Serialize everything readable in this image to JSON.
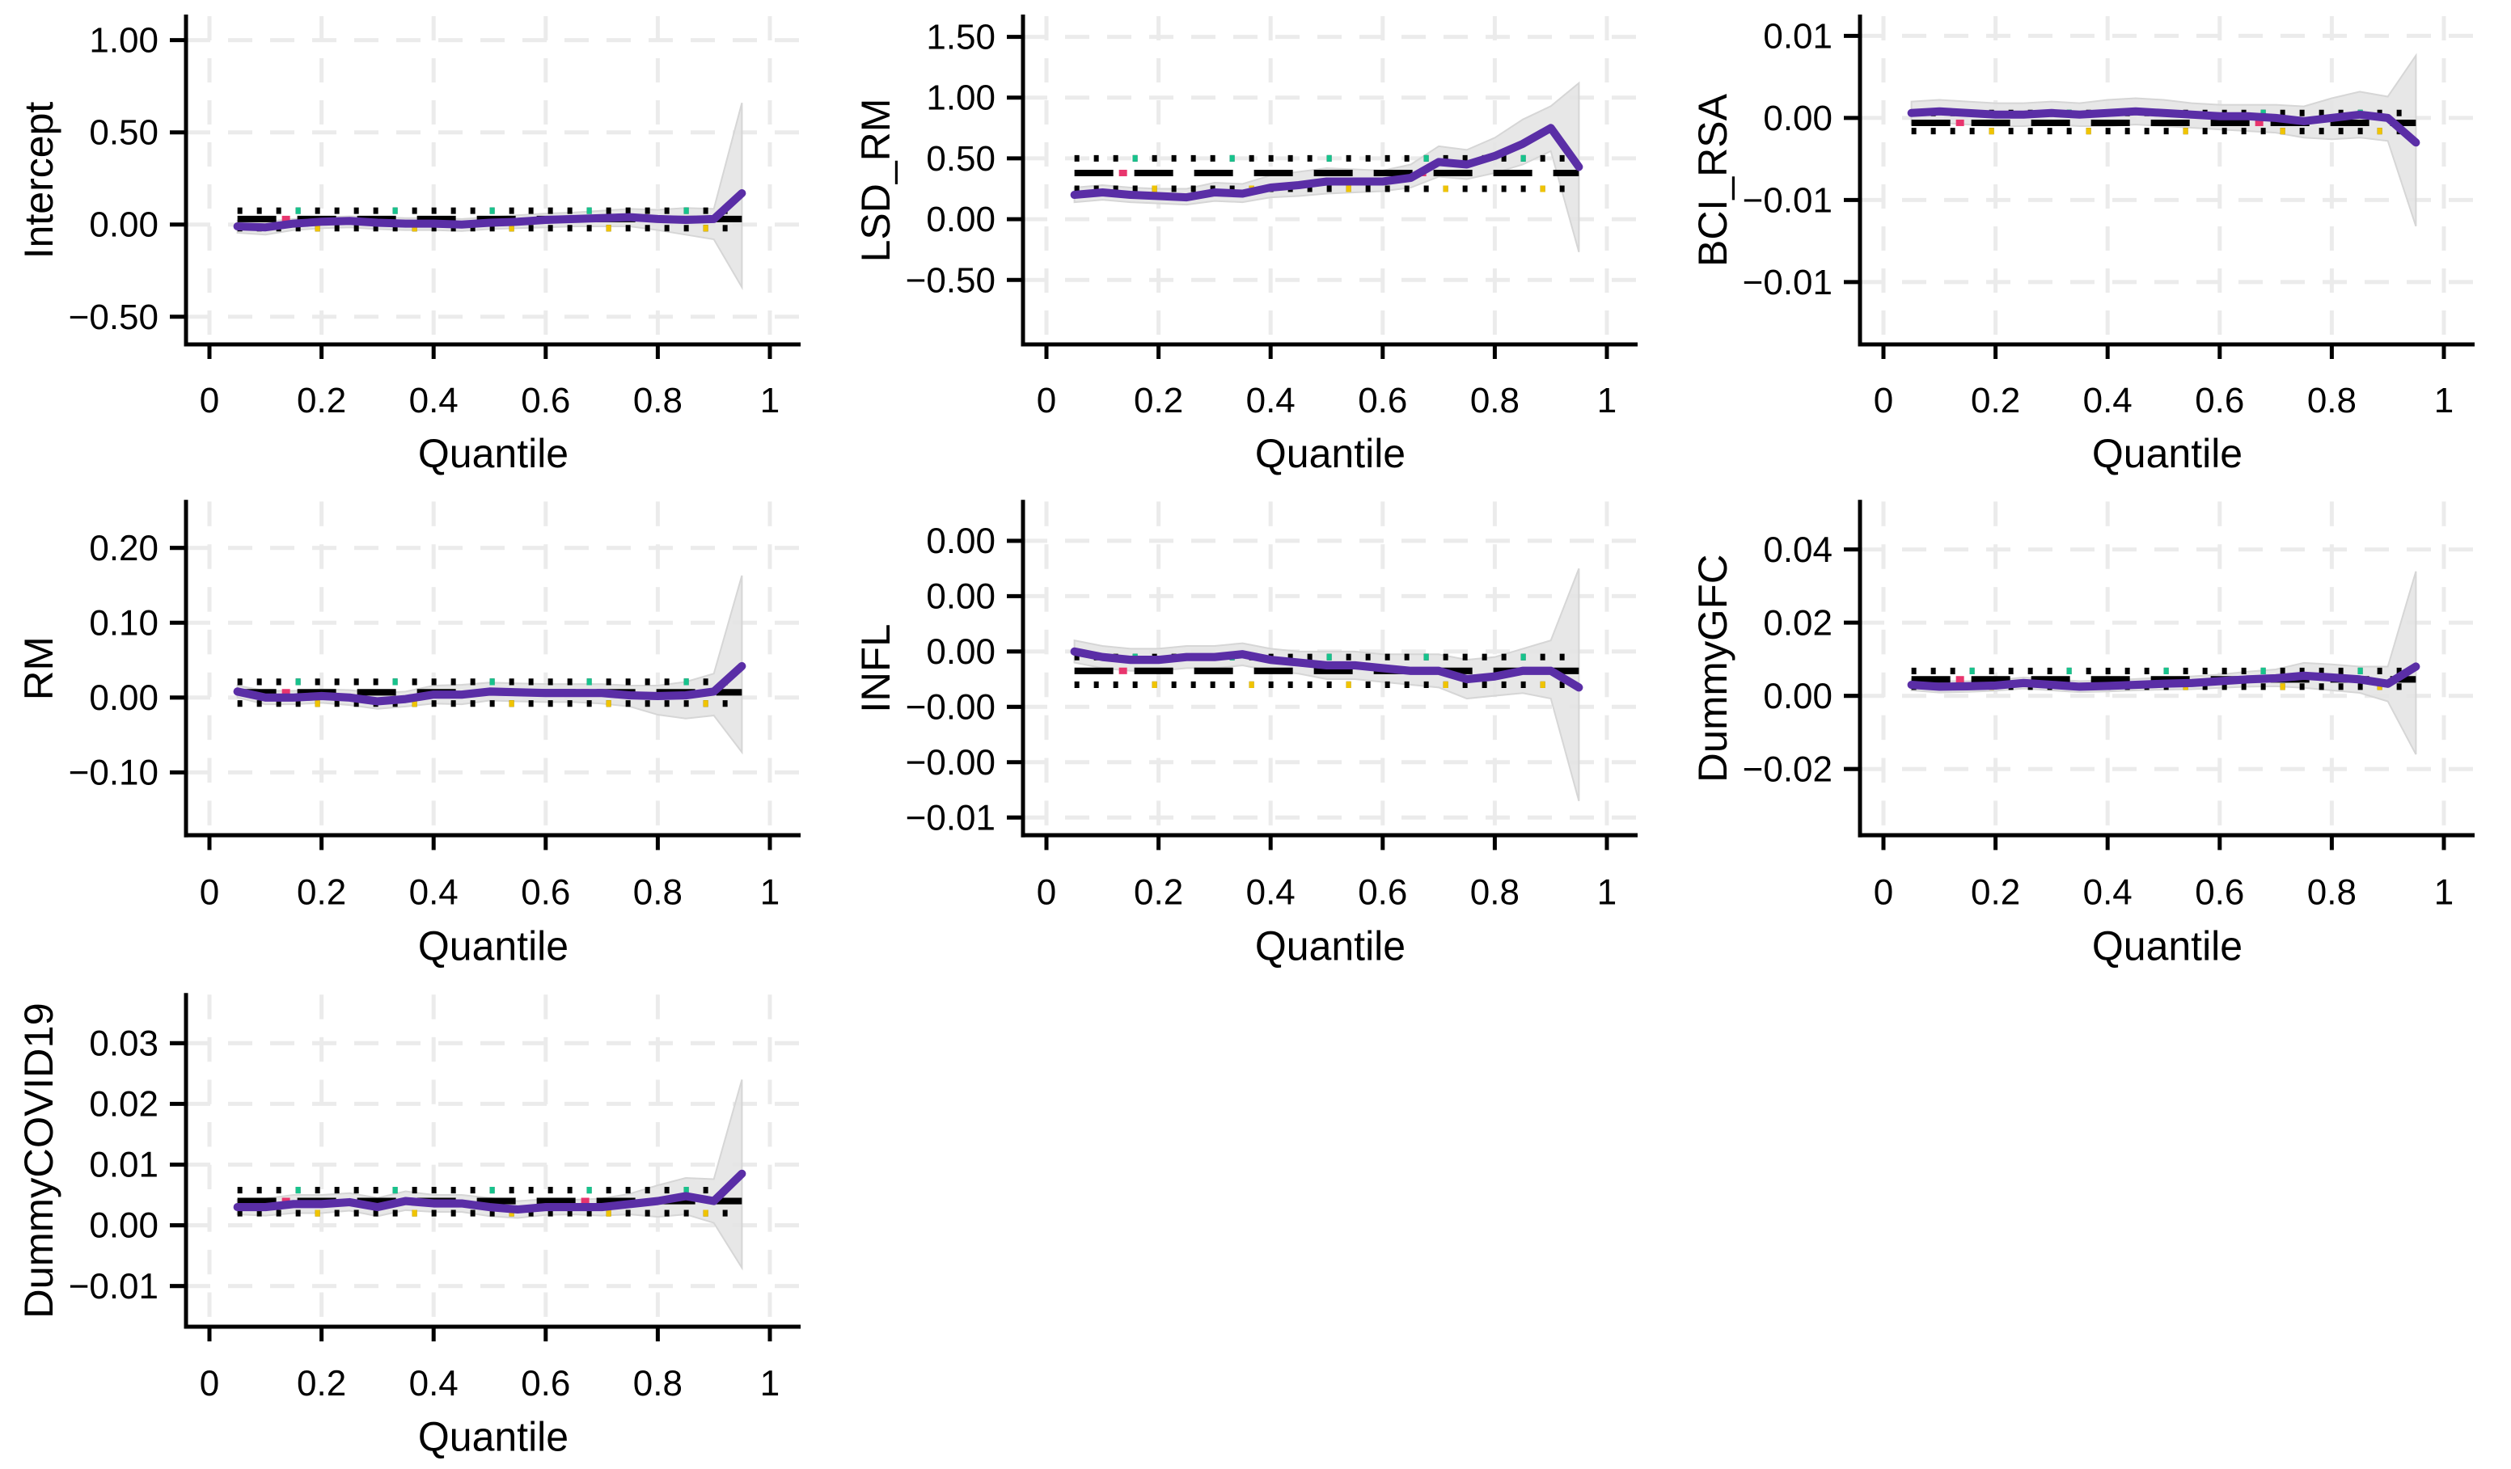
{
  "colors": {
    "background": "#ffffff",
    "qreg_line": "#5a2ea6",
    "ci_band": "#e4e4e4",
    "ci_band_edge": "#d6d6d6",
    "grid": "#ebebeb",
    "axis": "#000000",
    "ols_dash_black": "#000000",
    "ols_dash_accent": "#e8356d",
    "ols_upper_dot_accent": "#17c38c",
    "ols_lower_dot_accent": "#f0c400",
    "text": "#000000"
  },
  "x_axis": {
    "label": "Quantile",
    "ticks": [
      {
        "v": 0,
        "label": "0"
      },
      {
        "v": 0.2,
        "label": "0.2"
      },
      {
        "v": 0.4,
        "label": "0.4"
      },
      {
        "v": 0.6,
        "label": "0.6"
      },
      {
        "v": 0.8,
        "label": "0.8"
      },
      {
        "v": 1,
        "label": "1"
      }
    ]
  },
  "quantiles": [
    0.05,
    0.1,
    0.15,
    0.2,
    0.25,
    0.3,
    0.35,
    0.4,
    0.45,
    0.5,
    0.55,
    0.6,
    0.65,
    0.7,
    0.75,
    0.8,
    0.85,
    0.9,
    0.95
  ],
  "chart_data": [
    {
      "type": "line",
      "ylabel": "Intercept",
      "ylim": [
        -0.65,
        1.13
      ],
      "yticks": [
        {
          "v": 1.0,
          "label": "1.00"
        },
        {
          "v": 0.5,
          "label": "0.50"
        },
        {
          "v": 0.0,
          "label": "0.00"
        },
        {
          "v": -0.5,
          "label": "−0.50"
        }
      ],
      "line": [
        -0.01,
        -0.015,
        0.005,
        0.015,
        0.02,
        0.01,
        0.005,
        0.005,
        0.0,
        0.01,
        0.015,
        0.025,
        0.03,
        0.035,
        0.04,
        0.03,
        0.025,
        0.03,
        0.17
      ],
      "ci_hi": [
        0.02,
        0.015,
        0.03,
        0.04,
        0.045,
        0.04,
        0.035,
        0.035,
        0.03,
        0.04,
        0.05,
        0.06,
        0.065,
        0.075,
        0.085,
        0.08,
        0.09,
        0.085,
        0.66
      ],
      "ci_lo": [
        -0.045,
        -0.055,
        -0.03,
        -0.02,
        -0.015,
        -0.025,
        -0.03,
        -0.03,
        -0.035,
        -0.025,
        -0.02,
        -0.015,
        -0.01,
        -0.01,
        -0.01,
        -0.03,
        -0.055,
        -0.08,
        -0.34
      ],
      "ols": 0.03,
      "ols_hi": 0.075,
      "ols_lo": -0.02
    },
    {
      "type": "line",
      "ylabel": "LSD_RM",
      "ylim": [
        -1.03,
        1.67
      ],
      "yticks": [
        {
          "v": 1.5,
          "label": "1.50"
        },
        {
          "v": 1.0,
          "label": "1.00"
        },
        {
          "v": 0.5,
          "label": "0.50"
        },
        {
          "v": 0.0,
          "label": "0.00"
        },
        {
          "v": -0.5,
          "label": "−0.50"
        }
      ],
      "line": [
        0.2,
        0.22,
        0.2,
        0.19,
        0.18,
        0.22,
        0.21,
        0.26,
        0.28,
        0.31,
        0.31,
        0.31,
        0.34,
        0.47,
        0.45,
        0.52,
        0.62,
        0.75,
        0.43
      ],
      "ci_hi": [
        0.26,
        0.28,
        0.26,
        0.25,
        0.25,
        0.3,
        0.29,
        0.36,
        0.39,
        0.42,
        0.41,
        0.4,
        0.45,
        0.6,
        0.57,
        0.67,
        0.82,
        0.93,
        1.12
      ],
      "ci_lo": [
        0.14,
        0.16,
        0.14,
        0.13,
        0.12,
        0.15,
        0.14,
        0.18,
        0.19,
        0.21,
        0.22,
        0.23,
        0.26,
        0.35,
        0.33,
        0.38,
        0.45,
        0.56,
        -0.27
      ],
      "ols": 0.38,
      "ols_hi": 0.5,
      "ols_lo": 0.25
    },
    {
      "type": "line",
      "ylabel": "BCI_RSA",
      "ylim": [
        -0.0138,
        0.0062
      ],
      "yticks": [
        {
          "v": 0.005,
          "label": "0.01"
        },
        {
          "v": 0.0,
          "label": "0.00"
        },
        {
          "v": -0.005,
          "label": "−0.01"
        },
        {
          "v": -0.01,
          "label": "−0.01"
        }
      ],
      "line": [
        0.0003,
        0.0004,
        0.0003,
        0.0002,
        0.0002,
        0.0003,
        0.0002,
        0.0003,
        0.0004,
        0.0003,
        0.0002,
        0.0001,
        0.0001,
        0.0,
        -0.0002,
        0.0,
        0.0002,
        0.0,
        -0.0015
      ],
      "ci_hi": [
        0.001,
        0.0011,
        0.001,
        0.0009,
        0.0009,
        0.001,
        0.0009,
        0.0011,
        0.0012,
        0.0011,
        0.0009,
        0.0008,
        0.0008,
        0.0008,
        0.0007,
        0.0012,
        0.0016,
        0.0013,
        0.0038
      ],
      "ci_lo": [
        -0.0004,
        -0.0003,
        -0.0004,
        -0.0005,
        -0.0005,
        -0.0004,
        -0.0005,
        -0.0005,
        -0.0004,
        -0.0005,
        -0.0006,
        -0.0007,
        -0.0008,
        -0.0009,
        -0.0012,
        -0.0013,
        -0.0012,
        -0.0014,
        -0.0066
      ],
      "ols": -0.0003,
      "ols_hi": 0.0003,
      "ols_lo": -0.0008
    },
    {
      "type": "line",
      "ylabel": "RM",
      "ylim": [
        -0.184,
        0.262
      ],
      "yticks": [
        {
          "v": 0.2,
          "label": "0.20"
        },
        {
          "v": 0.1,
          "label": "0.10"
        },
        {
          "v": 0.0,
          "label": "0.00"
        },
        {
          "v": -0.1,
          "label": "−0.10"
        }
      ],
      "line": [
        0.008,
        0.0,
        0.0,
        0.002,
        0.0,
        -0.005,
        -0.002,
        0.004,
        0.004,
        0.008,
        0.007,
        0.006,
        0.006,
        0.006,
        0.003,
        0.002,
        0.003,
        0.008,
        0.042
      ],
      "ci_hi": [
        0.016,
        0.009,
        0.009,
        0.011,
        0.01,
        0.006,
        0.008,
        0.016,
        0.017,
        0.02,
        0.019,
        0.018,
        0.018,
        0.018,
        0.016,
        0.016,
        0.021,
        0.032,
        0.163
      ],
      "ci_lo": [
        0.0,
        -0.009,
        -0.009,
        -0.007,
        -0.01,
        -0.015,
        -0.012,
        -0.008,
        -0.009,
        -0.004,
        -0.005,
        -0.006,
        -0.006,
        -0.008,
        -0.012,
        -0.023,
        -0.028,
        -0.024,
        -0.073
      ],
      "ols": 0.007,
      "ols_hi": 0.021,
      "ols_lo": -0.008
    },
    {
      "type": "line",
      "ylabel": "INFL",
      "ylim": [
        -0.00664,
        0.00542
      ],
      "yticks": [
        {
          "v": 0.004,
          "label": "0.00"
        },
        {
          "v": 0.002,
          "label": "0.00"
        },
        {
          "v": 0.0,
          "label": "0.00"
        },
        {
          "v": -0.002,
          "label": "−0.00"
        },
        {
          "v": -0.004,
          "label": "−0.00"
        },
        {
          "v": -0.006,
          "label": "−0.01"
        }
      ],
      "line": [
        0.0,
        -0.0002,
        -0.0003,
        -0.0003,
        -0.0002,
        -0.0002,
        -0.0001,
        -0.0003,
        -0.0004,
        -0.0005,
        -0.0005,
        -0.0006,
        -0.0007,
        -0.0007,
        -0.001,
        -0.0009,
        -0.0007,
        -0.0007,
        -0.0013
      ],
      "ci_hi": [
        0.0004,
        0.0002,
        0.0001,
        0.0001,
        0.0002,
        0.0002,
        0.0003,
        0.0001,
        0.0,
        0.0,
        0.0,
        -0.0001,
        -0.0001,
        -0.0001,
        -0.0003,
        -0.0002,
        0.0001,
        0.0004,
        0.003
      ],
      "ci_lo": [
        -0.0004,
        -0.0006,
        -0.0007,
        -0.0007,
        -0.0006,
        -0.0006,
        -0.0005,
        -0.0007,
        -0.0008,
        -0.001,
        -0.001,
        -0.0011,
        -0.0012,
        -0.0013,
        -0.0017,
        -0.0016,
        -0.0015,
        -0.0017,
        -0.0054
      ],
      "ols": -0.0007,
      "ols_hi": -0.0002,
      "ols_lo": -0.0012
    },
    {
      "type": "line",
      "ylabel": "DummyGFC",
      "ylim": [
        -0.0381,
        0.0531
      ],
      "yticks": [
        {
          "v": 0.04,
          "label": "0.04"
        },
        {
          "v": 0.02,
          "label": "0.02"
        },
        {
          "v": 0.0,
          "label": "0.00"
        },
        {
          "v": -0.02,
          "label": "−0.02"
        }
      ],
      "line": [
        0.003,
        0.0025,
        0.0026,
        0.0028,
        0.0035,
        0.003,
        0.0025,
        0.0027,
        0.003,
        0.0033,
        0.0035,
        0.004,
        0.0045,
        0.0048,
        0.0055,
        0.005,
        0.0045,
        0.0033,
        0.008
      ],
      "ci_hi": [
        0.0045,
        0.004,
        0.004,
        0.0043,
        0.005,
        0.0045,
        0.004,
        0.0042,
        0.0046,
        0.005,
        0.0053,
        0.0058,
        0.0066,
        0.0072,
        0.009,
        0.0086,
        0.008,
        0.008,
        0.034
      ],
      "ci_lo": [
        0.0015,
        0.0009,
        0.0011,
        0.0014,
        0.002,
        0.0015,
        0.001,
        0.0012,
        0.0015,
        0.0017,
        0.0018,
        0.0022,
        0.0025,
        0.0026,
        0.0022,
        0.0015,
        0.0008,
        -0.0015,
        -0.016
      ],
      "ols": 0.0045,
      "ols_hi": 0.0068,
      "ols_lo": 0.0025
    },
    {
      "type": "line",
      "ylabel": "DummyCOVID19",
      "ylim": [
        -0.0167,
        0.038
      ],
      "yticks": [
        {
          "v": 0.03,
          "label": "0.03"
        },
        {
          "v": 0.02,
          "label": "0.02"
        },
        {
          "v": 0.01,
          "label": "0.01"
        },
        {
          "v": 0.0,
          "label": "0.00"
        },
        {
          "v": -0.01,
          "label": "−0.01"
        }
      ],
      "line": [
        0.003,
        0.003,
        0.0035,
        0.0035,
        0.0038,
        0.003,
        0.004,
        0.0036,
        0.0036,
        0.003,
        0.0026,
        0.003,
        0.003,
        0.003,
        0.0035,
        0.004,
        0.0048,
        0.004,
        0.0085
      ],
      "ci_hi": [
        0.0042,
        0.0044,
        0.005,
        0.005,
        0.0053,
        0.0045,
        0.0056,
        0.005,
        0.005,
        0.0045,
        0.004,
        0.0043,
        0.0042,
        0.0044,
        0.0052,
        0.0066,
        0.0078,
        0.0076,
        0.024
      ],
      "ci_lo": [
        0.0018,
        0.0016,
        0.002,
        0.002,
        0.0024,
        0.0015,
        0.0025,
        0.0022,
        0.0022,
        0.0015,
        0.0012,
        0.0017,
        0.0018,
        0.0016,
        0.0018,
        0.0014,
        0.0018,
        0.0004,
        -0.007
      ],
      "ols": 0.004,
      "ols_hi": 0.0058,
      "ols_lo": 0.002
    }
  ]
}
